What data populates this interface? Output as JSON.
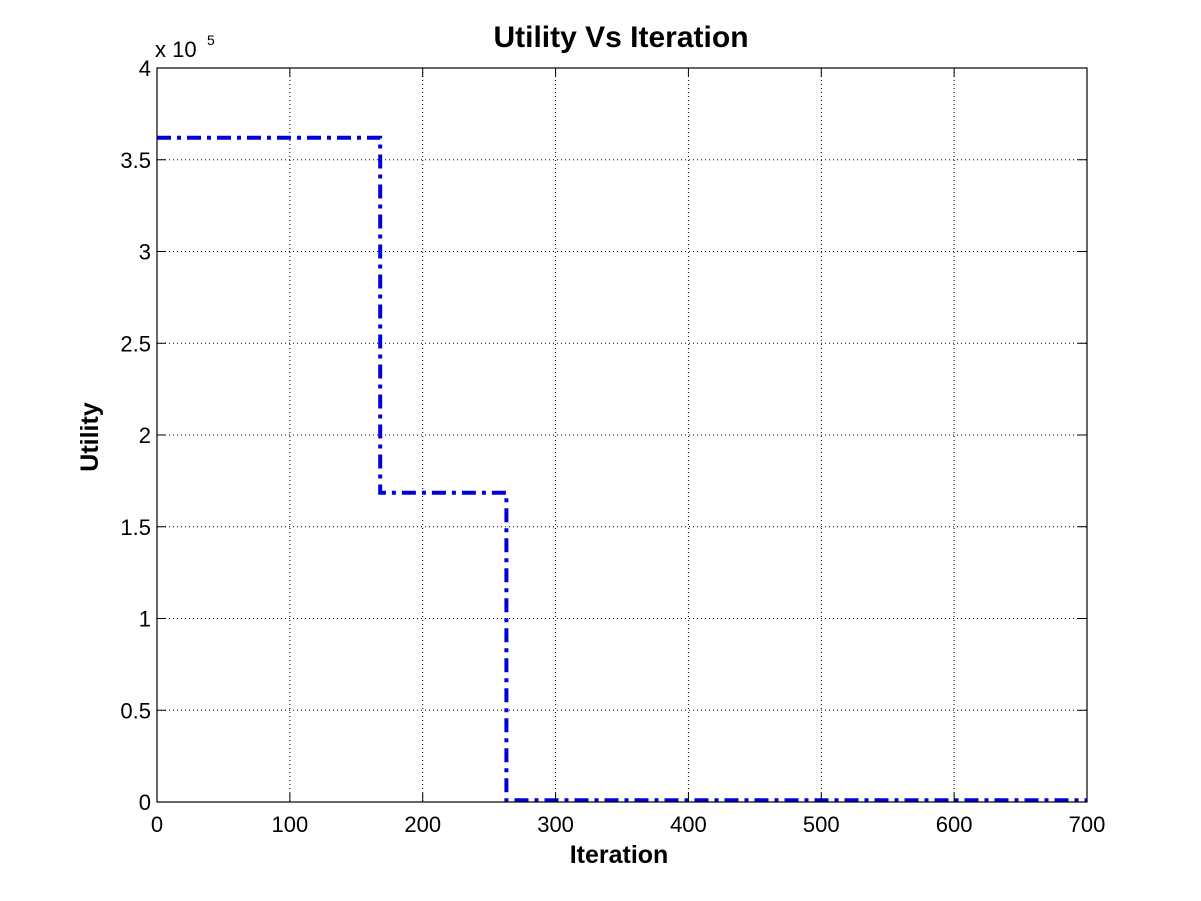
{
  "chart_data": {
    "type": "line",
    "title": "Utility Vs Iteration",
    "xlabel": "Iteration",
    "ylabel": "Utility",
    "xlim": [
      0,
      700
    ],
    "ylim": [
      0,
      400000
    ],
    "x_ticks": [
      0,
      100,
      200,
      300,
      400,
      500,
      600,
      700
    ],
    "x_tick_labels": [
      "0",
      "100",
      "200",
      "300",
      "400",
      "500",
      "600",
      "700"
    ],
    "y_ticks": [
      0,
      50000,
      100000,
      150000,
      200000,
      250000,
      300000,
      350000,
      400000
    ],
    "y_tick_labels": [
      "0",
      "0.5",
      "1",
      "1.5",
      "2",
      "2.5",
      "3",
      "3.5",
      "4"
    ],
    "y_exponent_base": "x 10",
    "y_exponent_power": "5",
    "grid": true,
    "line_style": "dash-dot",
    "series": [
      {
        "color": "#0000dd",
        "x": [
          0,
          168,
          168,
          263,
          263,
          700
        ],
        "y": [
          362000,
          362000,
          168500,
          168500,
          1000,
          1000
        ]
      }
    ]
  }
}
